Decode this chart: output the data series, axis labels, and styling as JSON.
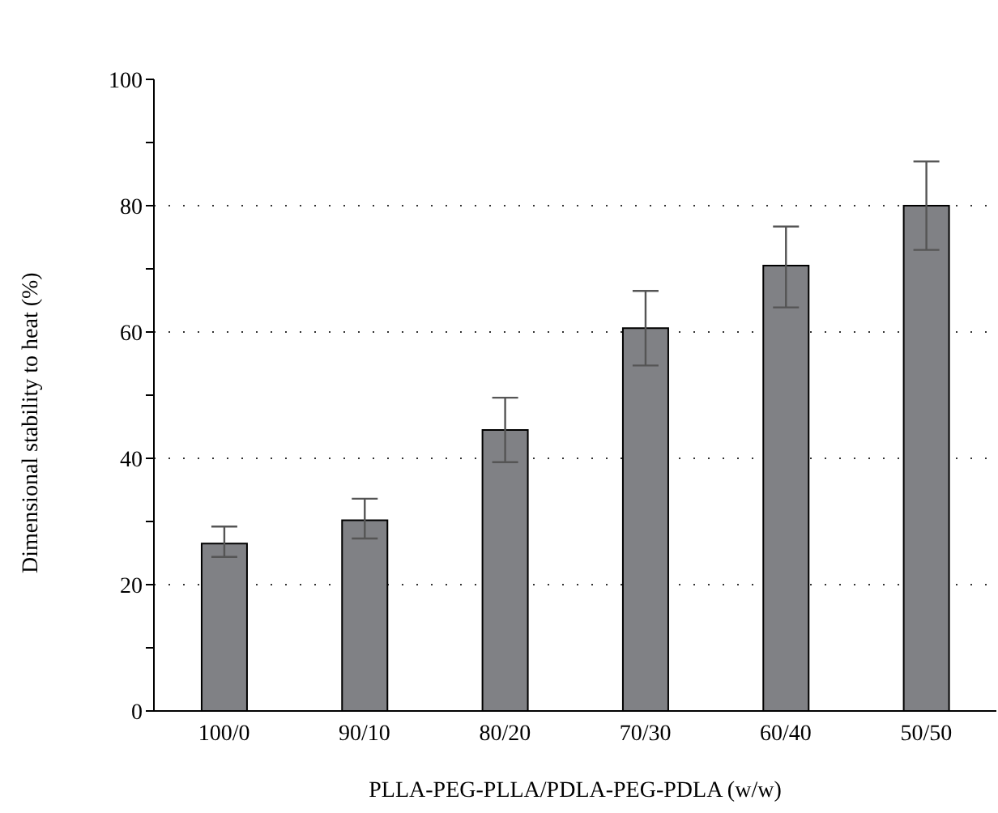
{
  "chart_data": {
    "type": "bar",
    "xlabel": "PLLA-PEG-PLLA/PDLA-PEG-PDLA (w/w)",
    "ylabel": "Dimensional stability to heat (%)",
    "categories": [
      "100/0",
      "90/10",
      "80/20",
      "70/30",
      "60/40",
      "50/50"
    ],
    "values": [
      26.5,
      30.2,
      44.5,
      60.6,
      70.5,
      80
    ],
    "errors": [
      [
        24.4,
        29.2
      ],
      [
        27.3,
        33.6
      ],
      [
        39.4,
        49.6
      ],
      [
        54.7,
        66.5
      ],
      [
        63.9,
        76.7
      ],
      [
        73,
        87
      ]
    ],
    "color": "#808185",
    "ylim": [
      0,
      100
    ],
    "yticks": [
      0,
      {
        "value": 10,
        "label": null
      },
      20,
      {
        "value": 30,
        "label": null
      },
      40,
      {
        "value": 50,
        "label": null
      },
      60,
      {
        "value": 70,
        "label": null
      },
      80,
      {
        "value": 90,
        "label": null
      },
      100
    ],
    "grid": "y"
  }
}
